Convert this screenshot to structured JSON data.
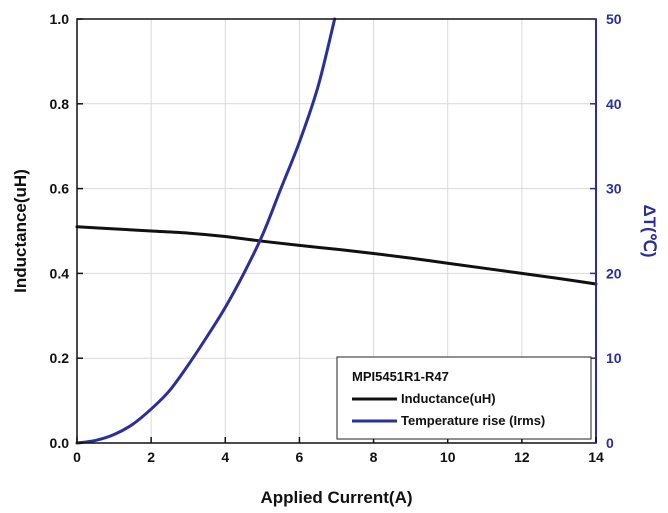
{
  "chart_data": {
    "type": "line",
    "xlabel": "Applied Current(A)",
    "ylabel_left": "Inductance(uH)",
    "ylabel_right": "ΔT(℃)",
    "xlim": [
      0,
      14
    ],
    "ylim_left": [
      0,
      1.0
    ],
    "ylim_right": [
      0,
      50
    ],
    "x_ticks": [
      "0",
      "2",
      "4",
      "6",
      "8",
      "10",
      "12",
      "14"
    ],
    "y_left_ticks": [
      "0.0",
      "0.2",
      "0.4",
      "0.6",
      "0.8",
      "1.0"
    ],
    "y_right_ticks": [
      "0",
      "10",
      "20",
      "30",
      "40",
      "50"
    ],
    "grid": true,
    "legend": {
      "title": "MPI5451R1-R47",
      "placement": "bottom-right"
    },
    "series": [
      {
        "name": "Inductance(uH)",
        "axis": "left",
        "color": "#111111",
        "x": [
          0,
          1,
          2,
          3,
          4,
          5,
          6,
          7,
          8,
          9,
          10,
          11,
          12,
          13,
          14
        ],
        "y": [
          0.51,
          0.505,
          0.5,
          0.495,
          0.487,
          0.476,
          0.466,
          0.457,
          0.447,
          0.436,
          0.424,
          0.412,
          0.4,
          0.388,
          0.375
        ]
      },
      {
        "name": "Temperature rise (Irms)",
        "axis": "right",
        "color": "#2a2f9a",
        "x": [
          0,
          0.5,
          1,
          1.5,
          2,
          2.5,
          3,
          3.5,
          4,
          4.5,
          5,
          5.5,
          6,
          6.5,
          6.95
        ],
        "y": [
          0,
          0.3,
          1,
          2.2,
          4,
          6.2,
          9.2,
          12.5,
          16,
          20,
          24.5,
          30,
          35.5,
          42,
          50
        ]
      }
    ]
  },
  "colors": {
    "left_axis": "#111111",
    "right_axis": "#2a2f9a",
    "grid": "#d9d9d9"
  }
}
